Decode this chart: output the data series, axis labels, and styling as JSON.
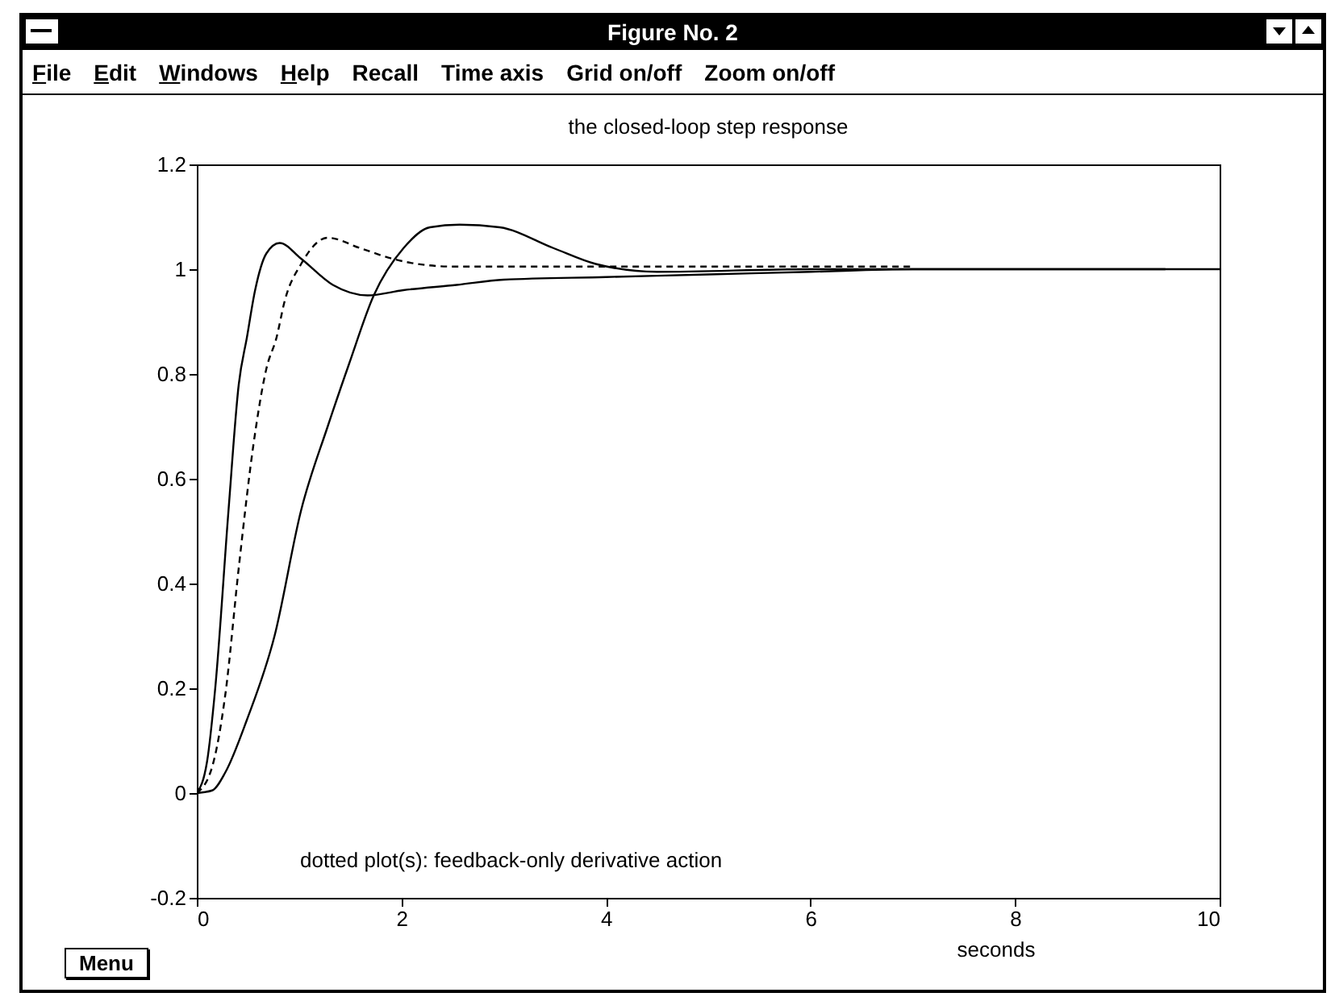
{
  "chart_data": {
    "type": "line",
    "title": "the closed-loop step response",
    "xlabel": "seconds",
    "annotations": [
      "dotted plot(s): feedback-only derivative action",
      "Figure No. 2",
      "File",
      "Edit",
      "Windows",
      "Help",
      "Recall",
      "Time axis",
      "Grid on/off",
      "Zoom on/off",
      "Menu"
    ],
    "xlim": [
      0,
      10
    ],
    "ylim": [
      -0.2,
      1.2
    ],
    "xticks": [
      0,
      2,
      4,
      6,
      8,
      10
    ],
    "yticks": [
      -0.2,
      0,
      0.2,
      0.4,
      0.6,
      0.8,
      1,
      1.2
    ],
    "marker": "none",
    "series": [
      {
        "color": "#000000",
        "line_style": "solid",
        "x": [
          0,
          0.1,
          0.18,
          0.31,
          0.41,
          0.49,
          0.57,
          0.68,
          0.81,
          1.02,
          1.33,
          1.67,
          2.02,
          2.54,
          3,
          4,
          5,
          6,
          7,
          8,
          9.47
        ],
        "values": [
          0,
          0.06,
          0.2,
          0.54,
          0.78,
          0.87,
          0.96,
          1.03,
          1.05,
          1.02,
          0.97,
          0.95,
          0.96,
          0.97,
          0.98,
          0.985,
          0.99,
          0.995,
          1,
          1,
          1
        ]
      },
      {
        "color": "#000000",
        "line_style": "dashed",
        "x": [
          0,
          0.15,
          0.28,
          0.41,
          0.55,
          0.68,
          0.78,
          0.86,
          1.02,
          1.28,
          1.6,
          1.91,
          2.5,
          4,
          5.5,
          6.98
        ],
        "values": [
          0,
          0.05,
          0.19,
          0.43,
          0.66,
          0.81,
          0.87,
          0.94,
          1.01,
          1.06,
          1.04,
          1.02,
          1.005,
          1.005,
          1.005,
          1.005
        ]
      },
      {
        "color": "#000000",
        "line_style": "solid",
        "x": [
          0,
          0.15,
          0.28,
          0.49,
          0.76,
          1.02,
          1.28,
          1.49,
          1.73,
          2.02,
          2.28,
          2.57,
          2.96,
          3.49,
          3.9,
          4.5,
          6,
          8,
          10
        ],
        "values": [
          0,
          0.005,
          0.04,
          0.14,
          0.3,
          0.54,
          0.7,
          0.82,
          0.95,
          1.04,
          1.08,
          1.085,
          1.08,
          1.04,
          1.01,
          0.995,
          1,
          1,
          1
        ]
      }
    ]
  }
}
